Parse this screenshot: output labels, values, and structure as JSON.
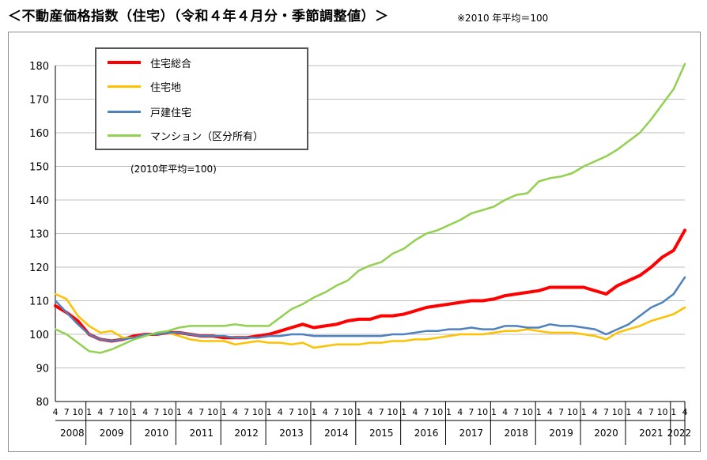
{
  "title": "＜不動産価格指数（住宅）（令和４年４月分・季節調整値）＞",
  "note": "※2010 年平均＝100",
  "chart_data": {
    "type": "line",
    "annotation": "(2010年平均=100)",
    "ylim": [
      80,
      180
    ],
    "yticks": [
      "80",
      "90",
      "100",
      "110",
      "120",
      "130",
      "140",
      "150",
      "160",
      "170",
      "180"
    ],
    "grid": true,
    "legend_position": "top-left",
    "x_month_labels_per_year": [
      "1",
      "4",
      "7",
      "10"
    ],
    "first_month_label": "4",
    "last_month_label": "4",
    "years": [
      "2008",
      "2009",
      "2010",
      "2011",
      "2012",
      "2013",
      "2014",
      "2015",
      "2016",
      "2017",
      "2018",
      "2019",
      "2020",
      "2021",
      "2022"
    ],
    "x": [
      "2008-04",
      "2008-07",
      "2008-10",
      "2009-01",
      "2009-04",
      "2009-07",
      "2009-10",
      "2010-01",
      "2010-04",
      "2010-07",
      "2010-10",
      "2011-01",
      "2011-04",
      "2011-07",
      "2011-10",
      "2012-01",
      "2012-04",
      "2012-07",
      "2012-10",
      "2013-01",
      "2013-04",
      "2013-07",
      "2013-10",
      "2014-01",
      "2014-04",
      "2014-07",
      "2014-10",
      "2015-01",
      "2015-04",
      "2015-07",
      "2015-10",
      "2016-01",
      "2016-04",
      "2016-07",
      "2016-10",
      "2017-01",
      "2017-04",
      "2017-07",
      "2017-10",
      "2018-01",
      "2018-04",
      "2018-07",
      "2018-10",
      "2019-01",
      "2019-04",
      "2019-07",
      "2019-10",
      "2020-01",
      "2020-04",
      "2020-07",
      "2020-10",
      "2021-01",
      "2021-04",
      "2021-07",
      "2021-10",
      "2022-01",
      "2022-04"
    ],
    "series": [
      {
        "name": "住宅総合",
        "color": "#ff0000",
        "values": [
          108.5,
          106.5,
          104.0,
          100.0,
          98.5,
          98.0,
          98.5,
          99.5,
          100.0,
          100.0,
          100.5,
          100.5,
          100.0,
          99.5,
          99.5,
          99.0,
          99.0,
          99.0,
          99.5,
          100.0,
          101.0,
          102.0,
          103.0,
          102.0,
          102.5,
          103.0,
          104.0,
          104.5,
          104.5,
          105.5,
          105.5,
          106.0,
          107.0,
          108.0,
          108.5,
          109.0,
          109.5,
          110.0,
          110.0,
          110.5,
          111.5,
          112.0,
          112.5,
          113.0,
          114.0,
          114.0,
          114.0,
          114.0,
          113.0,
          112.0,
          114.5,
          116.0,
          117.5,
          120.0,
          123.0,
          125.0,
          131.0
        ]
      },
      {
        "name": "住宅地",
        "color": "#ffc000",
        "values": [
          112.0,
          110.5,
          105.5,
          102.5,
          100.5,
          101.0,
          99.0,
          99.0,
          100.0,
          100.0,
          100.5,
          99.5,
          98.5,
          98.0,
          98.0,
          98.0,
          97.0,
          97.5,
          98.0,
          97.5,
          97.5,
          97.0,
          97.5,
          96.0,
          96.5,
          97.0,
          97.0,
          97.0,
          97.5,
          97.5,
          98.0,
          98.0,
          98.5,
          98.5,
          99.0,
          99.5,
          100.0,
          100.0,
          100.0,
          100.5,
          101.0,
          101.0,
          101.5,
          101.0,
          100.5,
          100.5,
          100.5,
          100.0,
          99.5,
          98.5,
          100.5,
          101.5,
          102.5,
          104.0,
          105.0,
          106.0,
          108.0
        ]
      },
      {
        "name": "戸建住宅",
        "color": "#4f81bd",
        "values": [
          110.0,
          106.5,
          103.0,
          100.0,
          98.5,
          98.0,
          98.5,
          99.0,
          100.0,
          100.0,
          100.5,
          100.5,
          100.0,
          99.5,
          99.5,
          99.5,
          99.0,
          99.0,
          99.0,
          99.5,
          99.5,
          100.0,
          100.0,
          99.5,
          99.5,
          99.5,
          99.5,
          99.5,
          99.5,
          99.5,
          100.0,
          100.0,
          100.5,
          101.0,
          101.0,
          101.5,
          101.5,
          102.0,
          101.5,
          101.5,
          102.5,
          102.5,
          102.0,
          102.0,
          103.0,
          102.5,
          102.5,
          102.0,
          101.5,
          100.0,
          101.5,
          103.0,
          105.5,
          108.0,
          109.5,
          112.0,
          117.0
        ]
      },
      {
        "name": "マンション（区分所有）",
        "color": "#92d050",
        "values": [
          101.5,
          100.0,
          97.5,
          95.0,
          94.5,
          95.5,
          97.0,
          98.5,
          99.5,
          100.5,
          101.0,
          102.0,
          102.5,
          102.5,
          102.5,
          102.5,
          103.0,
          102.5,
          102.5,
          102.5,
          105.0,
          107.5,
          109.0,
          111.0,
          112.5,
          114.5,
          116.0,
          119.0,
          120.5,
          121.5,
          124.0,
          125.5,
          128.0,
          130.0,
          131.0,
          132.5,
          134.0,
          136.0,
          137.0,
          138.0,
          140.0,
          141.5,
          142.0,
          145.5,
          146.5,
          147.0,
          148.0,
          150.0,
          151.5,
          153.0,
          155.0,
          157.5,
          160.0,
          164.0,
          168.5,
          173.0,
          180.5
        ]
      }
    ]
  }
}
